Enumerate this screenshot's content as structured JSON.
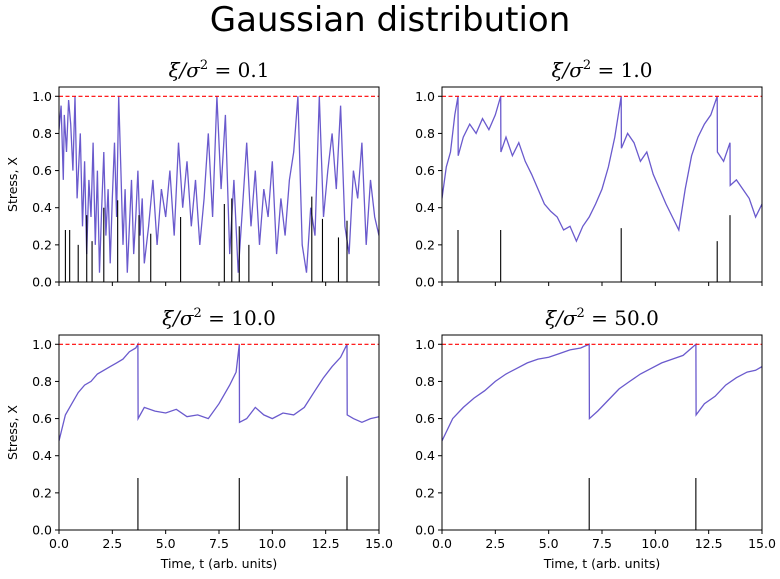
{
  "suptitle": "Gaussian distribution",
  "colors": {
    "trace": "#6a5acd",
    "threshold": "#ff0000",
    "events": "#000000",
    "axes": "#000000"
  },
  "chart_data": [
    {
      "type": "line",
      "title": "ξ/σ² = 0.1",
      "title_parts": {
        "pre": "ξ/σ",
        "sup": "2",
        "post": " = 0.1"
      },
      "xlabel": "",
      "ylabel": "Stress, X",
      "xlim": [
        0,
        15
      ],
      "ylim": [
        0,
        1.05
      ],
      "xticks": [
        0,
        2.5,
        5,
        7.5,
        10,
        12.5,
        15
      ],
      "xticklabels": [],
      "yticks": [
        0,
        0.2,
        0.4,
        0.6,
        0.8,
        1.0
      ],
      "yticklabels": [
        "0.0",
        "0.2",
        "0.4",
        "0.6",
        "0.8",
        "1.0"
      ],
      "threshold": 1.0,
      "series": [
        {
          "x": [
            0,
            0.1,
            0.2,
            0.25,
            0.35,
            0.45,
            0.55,
            0.65,
            0.75,
            0.85,
            1.0,
            1.1,
            1.2,
            1.3,
            1.4,
            1.5,
            1.6,
            1.7,
            1.8,
            1.9,
            2.0,
            2.1,
            2.2,
            2.3,
            2.4,
            2.5,
            2.6,
            2.7,
            2.8,
            2.9,
            3.0,
            3.1,
            3.2,
            3.3,
            3.4,
            3.5,
            3.6,
            3.7,
            3.8,
            3.9,
            4.0,
            4.2,
            4.4,
            4.6,
            4.8,
            5.0,
            5.2,
            5.4,
            5.6,
            5.8,
            6.0,
            6.2,
            6.4,
            6.6,
            6.8,
            7.0,
            7.2,
            7.4,
            7.6,
            7.8,
            8.0,
            8.2,
            8.4,
            8.6,
            8.8,
            9.0,
            9.2,
            9.4,
            9.6,
            9.8,
            10.0,
            10.2,
            10.4,
            10.6,
            10.8,
            11.0,
            11.2,
            11.4,
            11.6,
            11.8,
            12.0,
            12.2,
            12.4,
            12.6,
            12.8,
            13.0,
            13.2,
            13.4,
            13.6,
            13.8,
            14.0,
            14.2,
            14.4,
            14.6,
            14.8,
            15.0
          ],
          "y": [
            0.82,
            0.95,
            0.55,
            0.9,
            0.7,
            0.98,
            0.85,
            0.6,
            1.0,
            0.45,
            0.8,
            0.3,
            0.65,
            0.15,
            0.55,
            0.35,
            0.75,
            0.2,
            0.6,
            0.05,
            0.4,
            0.7,
            0.25,
            0.5,
            0.1,
            0.45,
            0.75,
            0.35,
            1.0,
            0.6,
            0.2,
            0.5,
            0.05,
            0.3,
            0.55,
            0.15,
            0.35,
            0.6,
            0.25,
            0.45,
            0.1,
            0.3,
            0.55,
            0.2,
            0.5,
            0.35,
            0.6,
            0.25,
            0.75,
            0.4,
            0.65,
            0.3,
            0.55,
            0.2,
            0.45,
            0.8,
            0.35,
            1.0,
            0.5,
            0.9,
            0.15,
            0.55,
            0.05,
            0.4,
            0.75,
            0.3,
            0.6,
            0.2,
            0.5,
            0.35,
            0.65,
            0.15,
            0.45,
            0.25,
            0.55,
            0.7,
            1.0,
            0.2,
            0.05,
            0.4,
            0.25,
            1.0,
            0.35,
            0.6,
            0.8,
            0.5,
            0.95,
            0.3,
            0.15,
            0.6,
            0.45,
            0.75,
            0.2,
            0.55,
            0.35,
            0.25
          ]
        }
      ],
      "events": [
        {
          "x": 0.3,
          "h": 0.28
        },
        {
          "x": 0.5,
          "h": 0.28
        },
        {
          "x": 0.9,
          "h": 0.2
        },
        {
          "x": 1.3,
          "h": 0.36
        },
        {
          "x": 1.55,
          "h": 0.22
        },
        {
          "x": 2.1,
          "h": 0.4
        },
        {
          "x": 2.75,
          "h": 0.44
        },
        {
          "x": 3.75,
          "h": 0.36
        },
        {
          "x": 4.3,
          "h": 0.26
        },
        {
          "x": 5.7,
          "h": 0.35
        },
        {
          "x": 7.75,
          "h": 0.42
        },
        {
          "x": 8.1,
          "h": 0.45
        },
        {
          "x": 8.45,
          "h": 0.3
        },
        {
          "x": 8.9,
          "h": 0.2
        },
        {
          "x": 11.85,
          "h": 0.46
        },
        {
          "x": 12.35,
          "h": 0.34
        },
        {
          "x": 13.1,
          "h": 0.24
        },
        {
          "x": 13.5,
          "h": 0.33
        }
      ]
    },
    {
      "type": "line",
      "title": "ξ/σ² = 1.0",
      "title_parts": {
        "pre": "ξ/σ",
        "sup": "2",
        "post": " = 1.0"
      },
      "xlabel": "",
      "ylabel": "",
      "xlim": [
        0,
        15
      ],
      "ylim": [
        0,
        1.05
      ],
      "xticks": [
        0,
        2.5,
        5,
        7.5,
        10,
        12.5,
        15
      ],
      "xticklabels": [],
      "yticks": [
        0,
        0.2,
        0.4,
        0.6,
        0.8,
        1.0
      ],
      "yticklabels": [
        "0.0",
        "0.2",
        "0.4",
        "0.6",
        "0.8",
        "1.0"
      ],
      "threshold": 1.0,
      "series": [
        {
          "x": [
            0,
            0.2,
            0.4,
            0.6,
            0.75,
            0.76,
            1.0,
            1.3,
            1.6,
            1.9,
            2.2,
            2.5,
            2.75,
            2.76,
            3.0,
            3.3,
            3.6,
            3.9,
            4.2,
            4.5,
            4.8,
            5.1,
            5.4,
            5.7,
            6.0,
            6.3,
            6.6,
            6.9,
            7.2,
            7.5,
            7.8,
            8.1,
            8.4,
            8.41,
            8.7,
            9.0,
            9.3,
            9.6,
            9.9,
            10.2,
            10.5,
            10.8,
            11.1,
            11.4,
            11.7,
            12.0,
            12.3,
            12.6,
            12.9,
            12.91,
            13.2,
            13.5,
            13.51,
            13.8,
            14.1,
            14.4,
            14.7,
            15.0
          ],
          "y": [
            0.45,
            0.62,
            0.7,
            0.9,
            1.0,
            0.68,
            0.78,
            0.85,
            0.8,
            0.88,
            0.82,
            0.9,
            1.0,
            0.7,
            0.78,
            0.68,
            0.75,
            0.65,
            0.58,
            0.5,
            0.42,
            0.38,
            0.35,
            0.28,
            0.3,
            0.22,
            0.3,
            0.35,
            0.42,
            0.5,
            0.62,
            0.78,
            1.0,
            0.72,
            0.8,
            0.75,
            0.65,
            0.7,
            0.58,
            0.5,
            0.42,
            0.35,
            0.28,
            0.5,
            0.68,
            0.78,
            0.85,
            0.9,
            1.0,
            0.7,
            0.65,
            0.75,
            0.52,
            0.55,
            0.5,
            0.45,
            0.35,
            0.42
          ]
        }
      ],
      "events": [
        {
          "x": 0.75,
          "h": 0.28
        },
        {
          "x": 2.75,
          "h": 0.28
        },
        {
          "x": 8.4,
          "h": 0.29
        },
        {
          "x": 12.9,
          "h": 0.22
        },
        {
          "x": 13.5,
          "h": 0.36
        }
      ]
    },
    {
      "type": "line",
      "title": "ξ/σ² = 10.0",
      "title_parts": {
        "pre": "ξ/σ",
        "sup": "2",
        "post": " = 10.0"
      },
      "xlabel": "Time, t (arb. units)",
      "ylabel": "Stress, X",
      "xlim": [
        0,
        15
      ],
      "ylim": [
        0,
        1.05
      ],
      "xticks": [
        0,
        2.5,
        5,
        7.5,
        10,
        12.5,
        15
      ],
      "xticklabels": [
        "0.0",
        "2.5",
        "5.0",
        "7.5",
        "10.0",
        "12.5",
        "15.0"
      ],
      "yticks": [
        0,
        0.2,
        0.4,
        0.6,
        0.8,
        1.0
      ],
      "yticklabels": [
        "0.0",
        "0.2",
        "0.4",
        "0.6",
        "0.8",
        "1.0"
      ],
      "threshold": 1.0,
      "series": [
        {
          "x": [
            0,
            0.3,
            0.6,
            0.9,
            1.2,
            1.5,
            1.8,
            2.1,
            2.4,
            2.7,
            3.0,
            3.3,
            3.6,
            3.7,
            3.71,
            4.0,
            4.5,
            5.0,
            5.5,
            6.0,
            6.5,
            7.0,
            7.5,
            8.0,
            8.3,
            8.45,
            8.46,
            8.8,
            9.2,
            9.6,
            10.0,
            10.5,
            11.0,
            11.5,
            12.0,
            12.4,
            12.8,
            13.2,
            13.5,
            13.51,
            13.8,
            14.2,
            14.6,
            15.0
          ],
          "y": [
            0.48,
            0.62,
            0.68,
            0.74,
            0.78,
            0.8,
            0.84,
            0.86,
            0.88,
            0.9,
            0.92,
            0.96,
            0.98,
            1.0,
            0.6,
            0.66,
            0.64,
            0.63,
            0.65,
            0.61,
            0.62,
            0.6,
            0.68,
            0.78,
            0.85,
            1.0,
            0.58,
            0.6,
            0.66,
            0.62,
            0.6,
            0.63,
            0.62,
            0.66,
            0.75,
            0.82,
            0.88,
            0.93,
            1.0,
            0.62,
            0.6,
            0.58,
            0.6,
            0.61
          ]
        }
      ],
      "events": [
        {
          "x": 3.7,
          "h": 0.28
        },
        {
          "x": 8.45,
          "h": 0.28
        },
        {
          "x": 13.5,
          "h": 0.29
        }
      ]
    },
    {
      "type": "line",
      "title": "ξ/σ² = 50.0",
      "title_parts": {
        "pre": "ξ/σ",
        "sup": "2",
        "post": " = 50.0"
      },
      "xlabel": "Time, t (arb. units)",
      "ylabel": "",
      "xlim": [
        0,
        15
      ],
      "ylim": [
        0,
        1.05
      ],
      "xticks": [
        0,
        2.5,
        5,
        7.5,
        10,
        12.5,
        15
      ],
      "xticklabels": [
        "0.0",
        "2.5",
        "5.0",
        "7.5",
        "10.0",
        "12.5",
        "15.0"
      ],
      "yticks": [
        0,
        0.2,
        0.4,
        0.6,
        0.8,
        1.0
      ],
      "yticklabels": [
        "0.0",
        "0.2",
        "0.4",
        "0.6",
        "0.8",
        "1.0"
      ],
      "threshold": 1.0,
      "series": [
        {
          "x": [
            0,
            0.5,
            1.0,
            1.5,
            2.0,
            2.5,
            3.0,
            3.5,
            4.0,
            4.5,
            5.0,
            5.5,
            6.0,
            6.5,
            6.9,
            6.91,
            7.3,
            7.8,
            8.3,
            8.8,
            9.3,
            9.8,
            10.3,
            10.8,
            11.3,
            11.9,
            11.91,
            12.3,
            12.8,
            13.3,
            13.8,
            14.3,
            14.7,
            15.0
          ],
          "y": [
            0.48,
            0.6,
            0.66,
            0.71,
            0.75,
            0.8,
            0.84,
            0.87,
            0.9,
            0.92,
            0.93,
            0.95,
            0.97,
            0.98,
            1.0,
            0.6,
            0.64,
            0.7,
            0.76,
            0.8,
            0.84,
            0.87,
            0.9,
            0.92,
            0.94,
            1.0,
            0.62,
            0.68,
            0.72,
            0.78,
            0.82,
            0.85,
            0.86,
            0.88
          ]
        }
      ],
      "events": [
        {
          "x": 6.9,
          "h": 0.28
        },
        {
          "x": 11.9,
          "h": 0.28
        }
      ]
    }
  ]
}
